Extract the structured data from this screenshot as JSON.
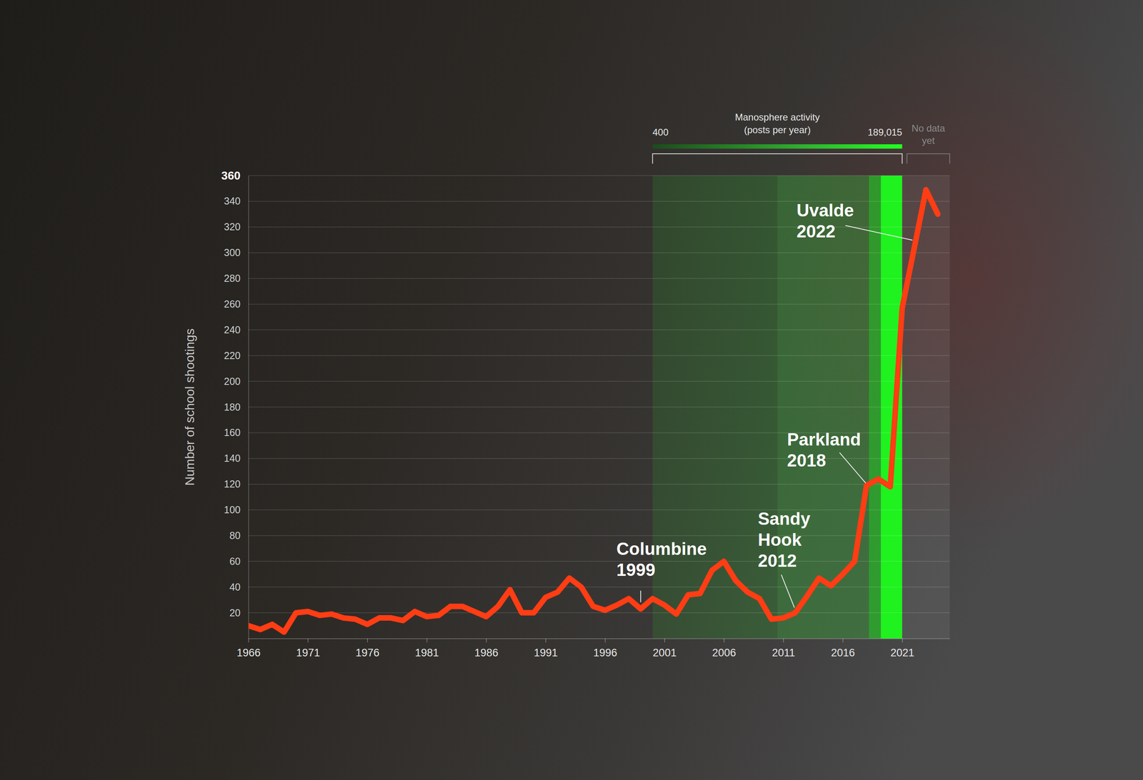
{
  "chart_data": {
    "type": "line",
    "y_label": "Number of school shootings",
    "color": "#ff3d14",
    "grid": true,
    "xlim": [
      1966,
      2025
    ],
    "xticks": [
      1966,
      1971,
      1976,
      1981,
      1986,
      1991,
      1996,
      2001,
      2006,
      2011,
      2016,
      2021
    ],
    "ylim": [
      0,
      360
    ],
    "yticks": [
      20,
      40,
      60,
      80,
      100,
      120,
      140,
      160,
      180,
      200,
      220,
      240,
      260,
      280,
      300,
      320,
      340,
      360
    ],
    "x": [
      1966,
      1967,
      1968,
      1969,
      1970,
      1971,
      1972,
      1973,
      1974,
      1975,
      1976,
      1977,
      1978,
      1979,
      1980,
      1981,
      1982,
      1983,
      1984,
      1985,
      1986,
      1987,
      1988,
      1989,
      1990,
      1991,
      1992,
      1993,
      1994,
      1995,
      1996,
      1997,
      1998,
      1999,
      2000,
      2001,
      2002,
      2003,
      2004,
      2005,
      2006,
      2007,
      2008,
      2009,
      2010,
      2011,
      2012,
      2013,
      2014,
      2015,
      2016,
      2017,
      2018,
      2019,
      2020,
      2021,
      2022,
      2023,
      2024
    ],
    "values": [
      10,
      7,
      11,
      5,
      20,
      21,
      18,
      19,
      16,
      15,
      11,
      16,
      16,
      14,
      21,
      17,
      18,
      25,
      25,
      21,
      17,
      25,
      38,
      20,
      20,
      32,
      36,
      47,
      40,
      25,
      22,
      26,
      31,
      23,
      31,
      26,
      19,
      34,
      35,
      53,
      60,
      45,
      36,
      31,
      15,
      16,
      20,
      33,
      47,
      41,
      50,
      60,
      119,
      124,
      118,
      257,
      303,
      349,
      330
    ],
    "annotations": [
      {
        "text": [
          "Columbine",
          "1999"
        ],
        "x": 1999
      },
      {
        "text": [
          "Sandy",
          "Hook",
          "2012"
        ],
        "x": 2012
      },
      {
        "text": [
          "Parkland",
          "2018"
        ],
        "x": 2018
      },
      {
        "text": [
          "Uvalde",
          "2022"
        ],
        "x": 2022
      }
    ],
    "manosphere_activity": {
      "title": [
        "Manosphere activity",
        "(posts per year)"
      ],
      "low": 400,
      "high": {
        "value": 189015,
        "label": "189,015"
      },
      "start": 2000,
      "end": 2021,
      "segments": [
        [
          2000,
          2010.5
        ],
        [
          2010.5,
          2018.2
        ],
        [
          2018.2,
          2019.2
        ],
        [
          2019.2,
          2021
        ]
      ]
    },
    "no_data": {
      "text": [
        "No data",
        "yet"
      ],
      "start": 2021,
      "end": 2025
    }
  }
}
